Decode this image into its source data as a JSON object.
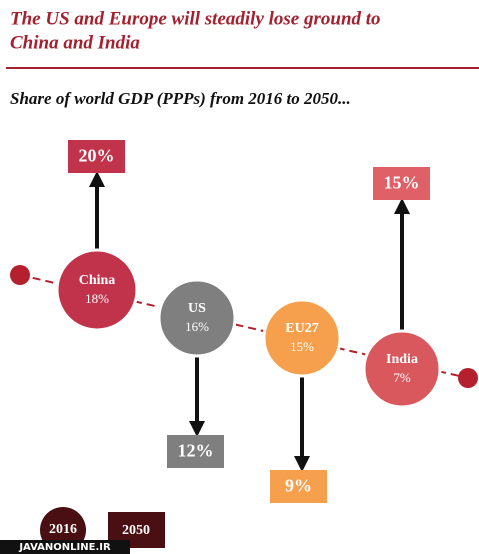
{
  "header": {
    "title_lines": [
      "The US and Europe will steadily lose ground to",
      "China and India"
    ],
    "subtitle": "Share of world GDP (PPPs) from 2016 to 2050..."
  },
  "items": [
    {
      "name": "China",
      "label_2016": "18%",
      "label_2050": "20%",
      "color": "#c0334a",
      "box_color": "#c0334a"
    },
    {
      "name": "US",
      "label_2016": "16%",
      "label_2050": "12%",
      "color": "#7f7f7f",
      "box_color": "#7f7f7f"
    },
    {
      "name": "EU27",
      "label_2016": "15%",
      "label_2050": "9%",
      "color": "#f6a04d",
      "box_color": "#f6a04d"
    },
    {
      "name": "India",
      "label_2016": "7%",
      "label_2050": "15%",
      "color": "#d9585e",
      "box_color": "#e06067"
    }
  ],
  "legend": [
    "2016",
    "2050"
  ],
  "watermark": "JAVANONLINE.IR"
}
